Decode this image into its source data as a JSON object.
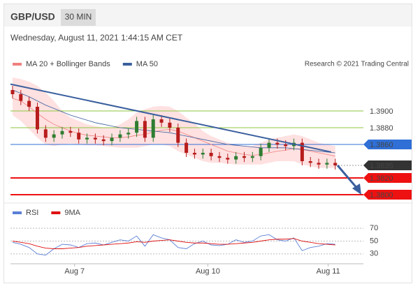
{
  "header": {
    "symbol": "GBP/USD",
    "interval": "30 MIN",
    "timestamp": "Wednesday, August 11, 2021 1:44:15 AM CET",
    "credit": "Research © 2021 Trading Central"
  },
  "chart_data": [
    {
      "type": "candlestick",
      "xlim": [
        -0.25,
        42.4
      ],
      "ylim": [
        1.379,
        1.3945
      ],
      "up_color": "#2e7d32",
      "down_color": "#b71c1c",
      "band_color": "#ffc9c9",
      "open": [
        1.3925,
        1.392,
        1.3912,
        1.3905,
        1.3878,
        1.3868,
        1.3872,
        1.3876,
        1.3874,
        1.3866,
        1.3868,
        1.3866,
        1.3864,
        1.3868,
        1.3872,
        1.3874,
        1.3888,
        1.3868,
        1.389,
        1.3886,
        1.388,
        1.3862,
        1.385,
        1.3848,
        1.385,
        1.3846,
        1.3844,
        1.3842,
        1.3846,
        1.3844,
        1.3846,
        1.3856,
        1.3862,
        1.386,
        1.3858,
        1.3862,
        1.384,
        1.3838,
        1.3836,
        1.3838
      ],
      "high": [
        1.393,
        1.3925,
        1.3917,
        1.391,
        1.3883,
        1.3877,
        1.3881,
        1.3881,
        1.3879,
        1.3873,
        1.3873,
        1.3871,
        1.3873,
        1.3877,
        1.3879,
        1.3893,
        1.3893,
        1.3895,
        1.3895,
        1.3891,
        1.3885,
        1.3867,
        1.3855,
        1.3855,
        1.3855,
        1.3851,
        1.3849,
        1.3851,
        1.3851,
        1.3851,
        1.3861,
        1.3867,
        1.3867,
        1.3865,
        1.3867,
        1.3867,
        1.3845,
        1.3843,
        1.3843,
        1.3843
      ],
      "low": [
        1.3915,
        1.3907,
        1.39,
        1.3873,
        1.3863,
        1.3863,
        1.3867,
        1.3869,
        1.3861,
        1.3861,
        1.3861,
        1.3859,
        1.3859,
        1.3863,
        1.3867,
        1.3869,
        1.3863,
        1.3863,
        1.3881,
        1.3875,
        1.3857,
        1.3845,
        1.3843,
        1.3843,
        1.3841,
        1.3839,
        1.3837,
        1.3837,
        1.3839,
        1.3839,
        1.3841,
        1.3851,
        1.3855,
        1.3853,
        1.3853,
        1.3835,
        1.3833,
        1.3831,
        1.3831,
        1.383
      ],
      "close": [
        1.392,
        1.3912,
        1.3905,
        1.3878,
        1.3868,
        1.3872,
        1.3876,
        1.3874,
        1.3866,
        1.3868,
        1.3866,
        1.3864,
        1.3868,
        1.3872,
        1.3874,
        1.3888,
        1.3868,
        1.389,
        1.3886,
        1.388,
        1.3862,
        1.385,
        1.3848,
        1.385,
        1.3846,
        1.3844,
        1.3842,
        1.3846,
        1.3844,
        1.3846,
        1.3856,
        1.3862,
        1.386,
        1.3858,
        1.3862,
        1.384,
        1.3838,
        1.3836,
        1.3838,
        1.3835
      ],
      "series": [
        {
          "name": "MA 20 + Bollinger Bands",
          "color": "#f08080",
          "values": [
            1.3915,
            1.3912,
            1.3905,
            1.3897,
            1.389,
            1.3884,
            1.388,
            1.3876,
            1.3873,
            1.3871,
            1.387,
            1.3869,
            1.3868,
            1.3868,
            1.3869,
            1.3871,
            1.3872,
            1.3875,
            1.3877,
            1.3878,
            1.3876,
            1.3872,
            1.3868,
            1.3864,
            1.386,
            1.3856,
            1.3852,
            1.385,
            1.3848,
            1.3847,
            1.3848,
            1.385,
            1.3852,
            1.3853,
            1.3855,
            1.3854,
            1.3852,
            1.385,
            1.3848,
            1.3846
          ],
          "upper": [
            1.394,
            1.3938,
            1.3935,
            1.393,
            1.3922,
            1.3912,
            1.39,
            1.3892,
            1.3888,
            1.3884,
            1.3882,
            1.388,
            1.388,
            1.3884,
            1.389,
            1.3898,
            1.3902,
            1.3905,
            1.3906,
            1.3905,
            1.39,
            1.3892,
            1.3885,
            1.3876,
            1.387,
            1.3866,
            1.3862,
            1.386,
            1.3858,
            1.3858,
            1.3862,
            1.3866,
            1.3868,
            1.387,
            1.3872,
            1.387,
            1.3866,
            1.3862,
            1.386,
            1.3858
          ],
          "lower": [
            1.3895,
            1.3888,
            1.3878,
            1.3868,
            1.386,
            1.3858,
            1.386,
            1.3861,
            1.386,
            1.3859,
            1.3859,
            1.3858,
            1.3857,
            1.3856,
            1.3856,
            1.3856,
            1.3858,
            1.386,
            1.386,
            1.3858,
            1.3852,
            1.3848,
            1.3844,
            1.384,
            1.3838,
            1.3838,
            1.3837,
            1.3836,
            1.3836,
            1.3836,
            1.3836,
            1.3838,
            1.384,
            1.384,
            1.384,
            1.3836,
            1.3834,
            1.3832,
            1.3832,
            1.3832
          ]
        },
        {
          "name": "MA 50",
          "color": "#3a5f9e",
          "values": [
            1.3925,
            1.3921,
            1.3917,
            1.3912,
            1.3907,
            1.3903,
            1.3899,
            1.3895,
            1.3892,
            1.3889,
            1.3886,
            1.3884,
            1.3882,
            1.388,
            1.3879,
            1.3878,
            1.3877,
            1.3876,
            1.3875,
            1.3874,
            1.3872,
            1.387,
            1.3868,
            1.3866,
            1.3864,
            1.3862,
            1.386,
            1.3859,
            1.3858,
            1.3857,
            1.3856,
            1.3856,
            1.3856,
            1.3856,
            1.3855,
            1.3854,
            1.3853,
            1.3852,
            1.3851,
            1.385
          ]
        }
      ],
      "levels": [
        {
          "value": 1.39,
          "label": "1.3900",
          "color": "#8dc63f",
          "line": "solid",
          "box": false
        },
        {
          "value": 1.388,
          "label": "1.3880",
          "color": "#8dc63f",
          "line": "solid",
          "box": false
        },
        {
          "value": 1.386,
          "label": "1.3860",
          "color": "#2f6fd6",
          "line": "solid",
          "box": true
        },
        {
          "value": 1.3835,
          "label": "1.3835",
          "color": "#333333",
          "line": "dotted",
          "box": true
        },
        {
          "value": 1.382,
          "label": "1.3820",
          "color": "#ee1111",
          "line": "solid",
          "box": true
        },
        {
          "value": 1.38,
          "label": "1.3800",
          "color": "#ee1111",
          "line": "solid",
          "box": true
        }
      ],
      "trendline": {
        "x": [
          -0.25,
          38.5
        ],
        "values": [
          1.3932,
          1.3851
        ],
        "color": "#3a5f9e"
      }
    },
    {
      "type": "line",
      "xlim": [
        -0.25,
        42.4
      ],
      "ylim": [
        20,
        80
      ],
      "yticks": [
        30,
        50,
        70
      ],
      "xticks": [
        {
          "value": 7.5,
          "label": "Aug 7"
        },
        {
          "value": 23.6,
          "label": "Aug 10"
        },
        {
          "value": 38.15,
          "label": "Aug 11"
        }
      ],
      "series": [
        {
          "name": "RSI",
          "color": "#5b7fd6",
          "values": [
            48,
            45,
            40,
            30,
            28,
            38,
            45,
            44,
            40,
            46,
            47,
            44,
            48,
            52,
            50,
            58,
            42,
            60,
            55,
            52,
            40,
            38,
            46,
            50,
            44,
            43,
            45,
            52,
            48,
            50,
            58,
            60,
            52,
            50,
            55,
            35,
            40,
            42,
            46,
            45
          ]
        },
        {
          "name": "9MA",
          "color": "#e01010",
          "values": [
            50,
            48,
            46,
            42,
            39,
            38,
            38,
            39,
            40,
            42,
            43,
            44,
            45,
            46,
            47,
            49,
            48,
            50,
            51,
            52,
            50,
            48,
            47,
            47,
            46,
            45,
            45,
            46,
            47,
            48,
            50,
            52,
            53,
            53,
            54,
            50,
            48,
            46,
            45,
            44
          ]
        }
      ]
    }
  ]
}
